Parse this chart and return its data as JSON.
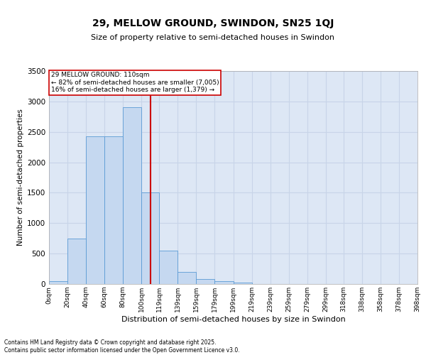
{
  "title_line1": "29, MELLOW GROUND, SWINDON, SN25 1QJ",
  "title_line2": "Size of property relative to semi-detached houses in Swindon",
  "xlabel": "Distribution of semi-detached houses by size in Swindon",
  "ylabel": "Number of semi-detached properties",
  "bin_edges": [
    0,
    20,
    40,
    60,
    80,
    100,
    119,
    139,
    159,
    179,
    199,
    219,
    239,
    259,
    279,
    299,
    318,
    338,
    358,
    378,
    398
  ],
  "bar_heights": [
    50,
    750,
    2430,
    2430,
    2900,
    1500,
    550,
    200,
    80,
    50,
    20,
    0,
    0,
    0,
    0,
    0,
    0,
    0,
    0,
    0
  ],
  "bar_color": "#c5d8f0",
  "bar_edge_color": "#5b9bd5",
  "property_size": 110,
  "vline_color": "#cc0000",
  "annotation_text": "29 MELLOW GROUND: 110sqm\n← 82% of semi-detached houses are smaller (7,005)\n16% of semi-detached houses are larger (1,379) →",
  "ylim": [
    0,
    3500
  ],
  "yticks": [
    0,
    500,
    1000,
    1500,
    2000,
    2500,
    3000,
    3500
  ],
  "grid_color": "#c8d4e8",
  "background_color": "#dde7f5",
  "footer_text": "Contains HM Land Registry data © Crown copyright and database right 2025.\nContains public sector information licensed under the Open Government Licence v3.0.",
  "tick_labels": [
    "0sqm",
    "20sqm",
    "40sqm",
    "60sqm",
    "80sqm",
    "100sqm",
    "119sqm",
    "139sqm",
    "159sqm",
    "179sqm",
    "199sqm",
    "219sqm",
    "239sqm",
    "259sqm",
    "279sqm",
    "299sqm",
    "318sqm",
    "338sqm",
    "358sqm",
    "378sqm",
    "398sqm"
  ],
  "title_fontsize": 10,
  "subtitle_fontsize": 8,
  "ylabel_fontsize": 7.5,
  "xlabel_fontsize": 8
}
